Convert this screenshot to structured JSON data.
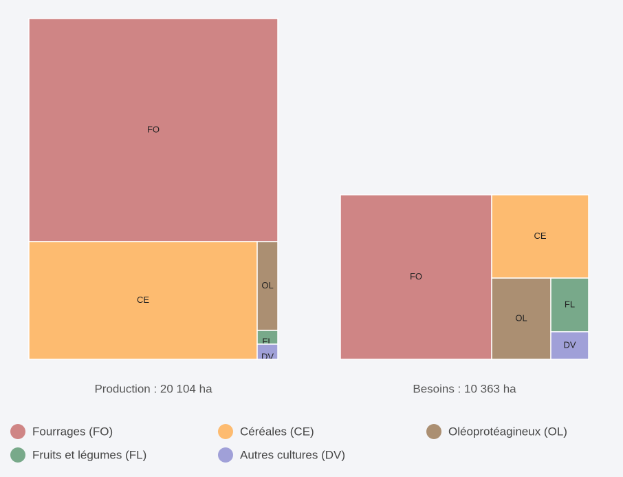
{
  "chart_data": {
    "type": "treemap",
    "categories": [
      "Fourrages (FO)",
      "Céréales (CE)",
      "Oléoprotéagineux (OL)",
      "Fruits et légumes (FL)",
      "Autres cultures (DV)"
    ],
    "codes": [
      "FO",
      "CE",
      "OL",
      "FL",
      "DV"
    ],
    "colors": [
      "#cf8585",
      "#fdbb70",
      "#ab8f72",
      "#78a98a",
      "#a0a0d8"
    ],
    "series": [
      {
        "name": "Production : 20 104 ha",
        "values": [
          13159,
          6370,
          434,
          67,
          74
        ]
      },
      {
        "name": "Besoins : 10 363 ha",
        "values": [
          6316,
          2049,
          1219,
          515,
          264
        ]
      }
    ]
  }
}
